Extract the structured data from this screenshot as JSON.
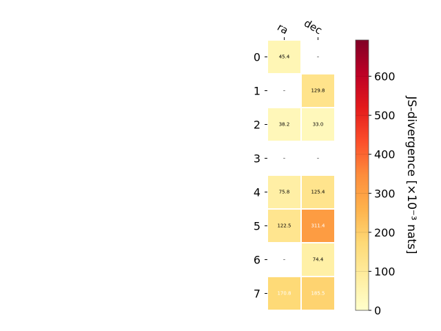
{
  "chart_data": {
    "type": "heatmap",
    "columns": [
      "ra",
      "dec"
    ],
    "rows": [
      "0",
      "1",
      "2",
      "3",
      "4",
      "5",
      "6",
      "7"
    ],
    "values": [
      [
        45.4,
        null
      ],
      [
        null,
        129.8
      ],
      [
        38.2,
        33.0
      ],
      [
        null,
        null
      ],
      [
        75.8,
        125.4
      ],
      [
        122.5,
        311.4
      ],
      [
        null,
        74.4
      ],
      [
        170.8,
        185.5
      ]
    ],
    "cell_labels": [
      [
        "45.4",
        "–"
      ],
      [
        "–",
        "129.8"
      ],
      [
        "38.2",
        "33.0"
      ],
      [
        "–",
        "–"
      ],
      [
        "75.8",
        "125.4"
      ],
      [
        "122.5",
        "311.4"
      ],
      [
        "–",
        "74.4"
      ],
      [
        "170.8",
        "185.5"
      ]
    ],
    "colorbar": {
      "label": "JS-divergence [×10⁻³ nats]",
      "range": [
        0,
        693
      ],
      "ticks": [
        0,
        100,
        200,
        300,
        400,
        500,
        600
      ],
      "tick_labels": [
        "0",
        "100",
        "200",
        "300",
        "400",
        "500",
        "600"
      ],
      "colormap": "YlOrRd"
    }
  }
}
